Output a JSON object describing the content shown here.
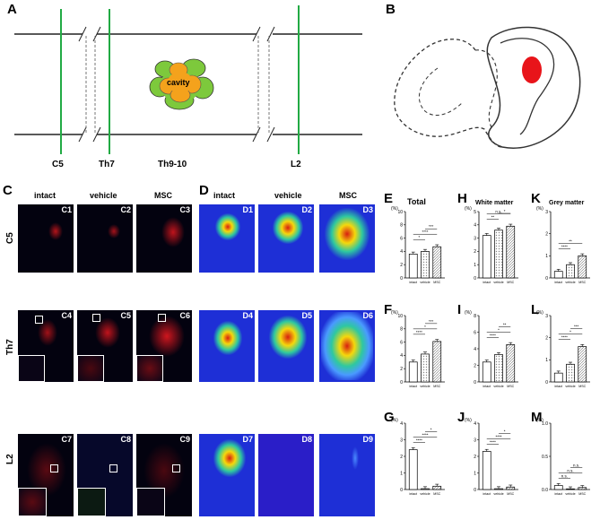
{
  "panels": {
    "A": {
      "letter": "A",
      "cavity_label": "cavity",
      "segments": [
        "C5",
        "Th7",
        "Th9-10",
        "L2"
      ]
    },
    "B": {
      "letter": "B"
    },
    "C": {
      "letter": "C",
      "columns": [
        "intact",
        "vehicle",
        "MSC"
      ],
      "rows": [
        "C5",
        "Th7",
        "L2"
      ],
      "tags": [
        "C1",
        "C2",
        "C3",
        "C4",
        "C5",
        "C6",
        "C7",
        "C8",
        "C9"
      ]
    },
    "D": {
      "letter": "D",
      "columns": [
        "intact",
        "vehicle",
        "MSC"
      ],
      "tags": [
        "D1",
        "D2",
        "D3",
        "D4",
        "D5",
        "D6",
        "D7",
        "D8",
        "D9"
      ]
    }
  },
  "colors": {
    "cord_line": "#222222",
    "segment_line": "#22aa44",
    "lesion": "#e8141a",
    "cavity_outer": "#7dc93c",
    "cavity_inner": "#f4a21c",
    "heat_bg": "#1e2fd6"
  },
  "chart_data": [
    {
      "id": "E",
      "type": "bar",
      "title": "Total",
      "unit": "(%)",
      "categories": [
        "intact",
        "vehicle",
        "MSC"
      ],
      "values": [
        3.6,
        4.0,
        4.7
      ],
      "ylim": [
        0,
        10
      ],
      "yticks": [
        "0",
        "2",
        "4",
        "6",
        "8",
        "10"
      ],
      "sig": [
        "*",
        "****",
        "***"
      ]
    },
    {
      "id": "H",
      "type": "bar",
      "title": "White matter",
      "unit": "(%)",
      "categories": [
        "intact",
        "vehicle",
        "MSC"
      ],
      "values": [
        3.2,
        3.6,
        3.9
      ],
      "ylim": [
        0,
        5
      ],
      "yticks": [
        "0",
        "1",
        "2",
        "3",
        "4",
        "5"
      ],
      "sig": [
        "**",
        "n.s.",
        "*"
      ]
    },
    {
      "id": "K",
      "type": "bar",
      "title": "Grey matter",
      "unit": "(%)",
      "categories": [
        "intact",
        "vehicle",
        "MSC"
      ],
      "values": [
        0.3,
        0.6,
        1.0
      ],
      "ylim": [
        0,
        3
      ],
      "yticks": [
        "0",
        "1",
        "2",
        "3"
      ],
      "sig": [
        "****",
        "**"
      ]
    },
    {
      "id": "F",
      "type": "bar",
      "title": "",
      "unit": "(%)",
      "categories": [
        "intact",
        "vehicle",
        "MSC"
      ],
      "values": [
        3.0,
        4.2,
        6.1
      ],
      "ylim": [
        0,
        10
      ],
      "yticks": [
        "0",
        "2",
        "4",
        "6",
        "8",
        "10"
      ],
      "sig": [
        "****",
        "*",
        "***"
      ]
    },
    {
      "id": "I",
      "type": "bar",
      "title": "",
      "unit": "(%)",
      "categories": [
        "intact",
        "vehicle",
        "MSC"
      ],
      "values": [
        2.4,
        3.3,
        4.5
      ],
      "ylim": [
        0,
        8
      ],
      "yticks": [
        "0",
        "2",
        "4",
        "6",
        "8"
      ],
      "sig": [
        "****",
        "*",
        "**"
      ]
    },
    {
      "id": "L",
      "type": "bar",
      "title": "",
      "unit": "(%)",
      "categories": [
        "intact",
        "vehicle",
        "MSC"
      ],
      "values": [
        0.4,
        0.8,
        1.6
      ],
      "ylim": [
        0,
        3
      ],
      "yticks": [
        "0",
        "1",
        "2",
        "3"
      ],
      "sig": [
        "****",
        "*",
        "***"
      ]
    },
    {
      "id": "G",
      "type": "bar",
      "title": "",
      "unit": "(%)",
      "categories": [
        "intact",
        "vehicle",
        "MSC"
      ],
      "values": [
        2.4,
        0.05,
        0.2
      ],
      "ylim": [
        0,
        4
      ],
      "yticks": [
        "0",
        "1",
        "2",
        "3",
        "4"
      ],
      "sig": [
        "****",
        "****",
        "*"
      ]
    },
    {
      "id": "J",
      "type": "bar",
      "title": "",
      "unit": "(%)",
      "categories": [
        "intact",
        "vehicle",
        "MSC"
      ],
      "values": [
        2.3,
        0.05,
        0.15
      ],
      "ylim": [
        0,
        4
      ],
      "yticks": [
        "0",
        "1",
        "2",
        "3",
        "4"
      ],
      "sig": [
        "****",
        "****",
        "*"
      ]
    },
    {
      "id": "M",
      "type": "bar",
      "title": "",
      "unit": "(%)",
      "categories": [
        "intact",
        "vehicle",
        "MSC"
      ],
      "values": [
        0.06,
        0.01,
        0.03
      ],
      "ylim": [
        0,
        1.0
      ],
      "yticks": [
        "0.0",
        "0.5",
        "1.0"
      ],
      "sig": [
        "n.s.",
        "n.s.",
        "n.s."
      ]
    }
  ]
}
